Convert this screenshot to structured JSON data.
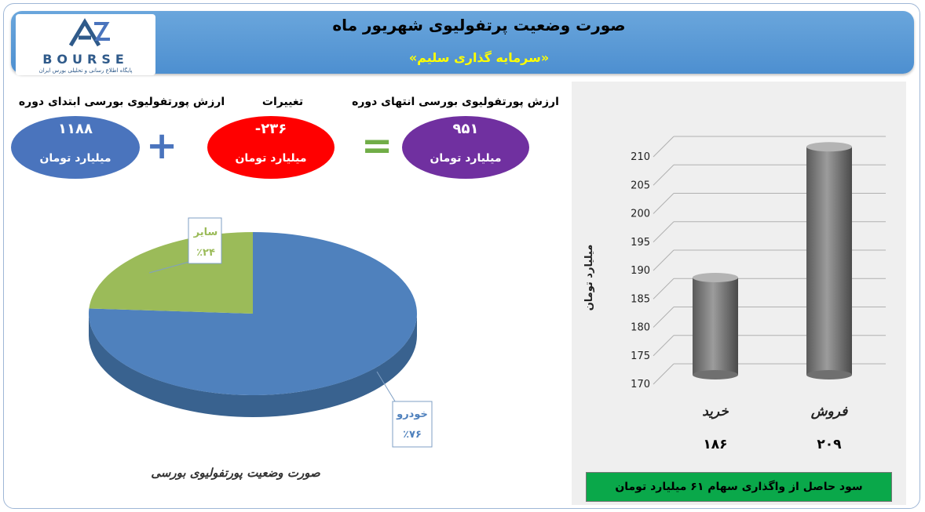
{
  "header": {
    "title": "صورت وضعیت پرتفولیوی شهریور ماه",
    "subtitle": "«سرمایه گذاری سلیم»",
    "logo_text": "BOURSE",
    "logo_sub": "پایگاه اطلاع رسانی و تحلیلی بورس ایران"
  },
  "summary": {
    "start_label": "ارزش پورتفولیوی بورسی ابتدای دوره",
    "start_value": "۱۱۸۸",
    "change_label": "تغییرات",
    "change_value": "-۲۳۶",
    "end_label": "ارزش پورتفولیوی بورسی انتهای دوره",
    "end_value": "۹۵۱",
    "unit": "میلیارد تومان",
    "plus": "+",
    "equals": "="
  },
  "colors": {
    "start_oval": "#4a74bd",
    "change_oval": "#ff0000",
    "end_oval": "#7030a0",
    "plus": "#4a74bd",
    "equals": "#70ad47",
    "pie_blue": "#4f81bd",
    "pie_green": "#9bbb59",
    "bar_gray": "#8c8c8c",
    "banner": "#0aa84a"
  },
  "chart_data": [
    {
      "type": "pie",
      "title": "صورت وضعیت پورتفولیوی بورسی",
      "slices": [
        {
          "name": "خودرو",
          "value": 76,
          "label": "٪۷۶"
        },
        {
          "name": "سایر",
          "value": 24,
          "label": "٪۲۴"
        }
      ]
    },
    {
      "type": "bar",
      "categories": [
        "خرید",
        "فروش"
      ],
      "values": [
        186,
        209
      ],
      "value_labels": [
        "۱۸۶",
        "۲۰۹"
      ],
      "ylabel": "میلیارد تومان",
      "ylim": [
        170,
        210
      ],
      "yticks": [
        170,
        175,
        180,
        185,
        190,
        195,
        200,
        205,
        210
      ],
      "grid": true
    }
  ],
  "footer_banner": "سود حاصل از واگذاری سهام ۶۱ میلیارد تومان"
}
